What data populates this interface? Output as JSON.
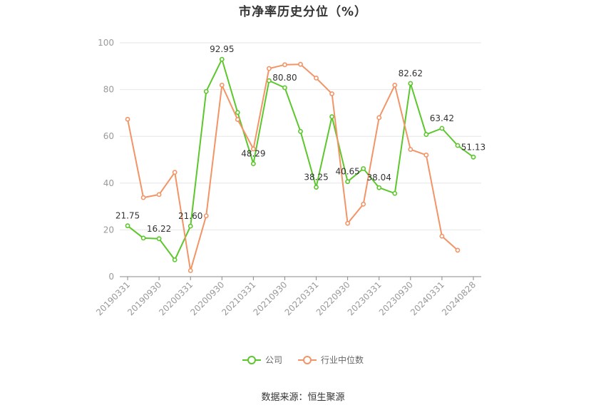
{
  "chart_data": {
    "type": "line",
    "title": "市净率历史分位（%）",
    "ylim": [
      0,
      100
    ],
    "yticks": [
      0,
      20,
      40,
      60,
      80,
      100
    ],
    "x": [
      "20190331",
      "20190630",
      "20190930",
      "20191231",
      "20200331",
      "20200630",
      "20200930",
      "20201231",
      "20210331",
      "20210630",
      "20210930",
      "20211231",
      "20220331",
      "20220630",
      "20220930",
      "20221231",
      "20230331",
      "20230630",
      "20230930",
      "20231231",
      "20240331",
      "20240630",
      "20240828"
    ],
    "xtick_labels": [
      "20190331",
      "20190930",
      "20200331",
      "20200930",
      "20210331",
      "20210930",
      "20220331",
      "20220930",
      "20230331",
      "20230930",
      "20240331",
      "20240828"
    ],
    "series": [
      {
        "name": "公司",
        "color": "#5cc72c",
        "values": [
          21.75,
          16.5,
          16.22,
          7.2,
          21.6,
          79.2,
          92.95,
          70.2,
          48.29,
          83.8,
          80.8,
          62.1,
          38.25,
          68.4,
          40.65,
          46.2,
          38.04,
          35.6,
          82.62,
          60.8,
          63.42,
          56.1,
          51.13
        ],
        "labels": [
          "21.75",
          "",
          "16.22",
          "",
          "21.60",
          "",
          "92.95",
          "",
          "48.29",
          "",
          "80.80",
          "",
          "38.25",
          "",
          "40.65",
          "",
          "38.04",
          "",
          "82.62",
          "",
          "63.42",
          "",
          "51.13"
        ]
      },
      {
        "name": "行业中位数",
        "color": "#f39467",
        "values": [
          67.3,
          33.8,
          35.1,
          44.6,
          2.6,
          26.0,
          81.9,
          67.2,
          54.6,
          89.0,
          90.6,
          90.8,
          84.9,
          78.2,
          22.8,
          31.0,
          68.0,
          81.9,
          54.4,
          52.0,
          17.3,
          11.3,
          null
        ]
      }
    ],
    "grid": true,
    "legend": "bottom-center"
  },
  "source": "数据来源：恒生聚源"
}
